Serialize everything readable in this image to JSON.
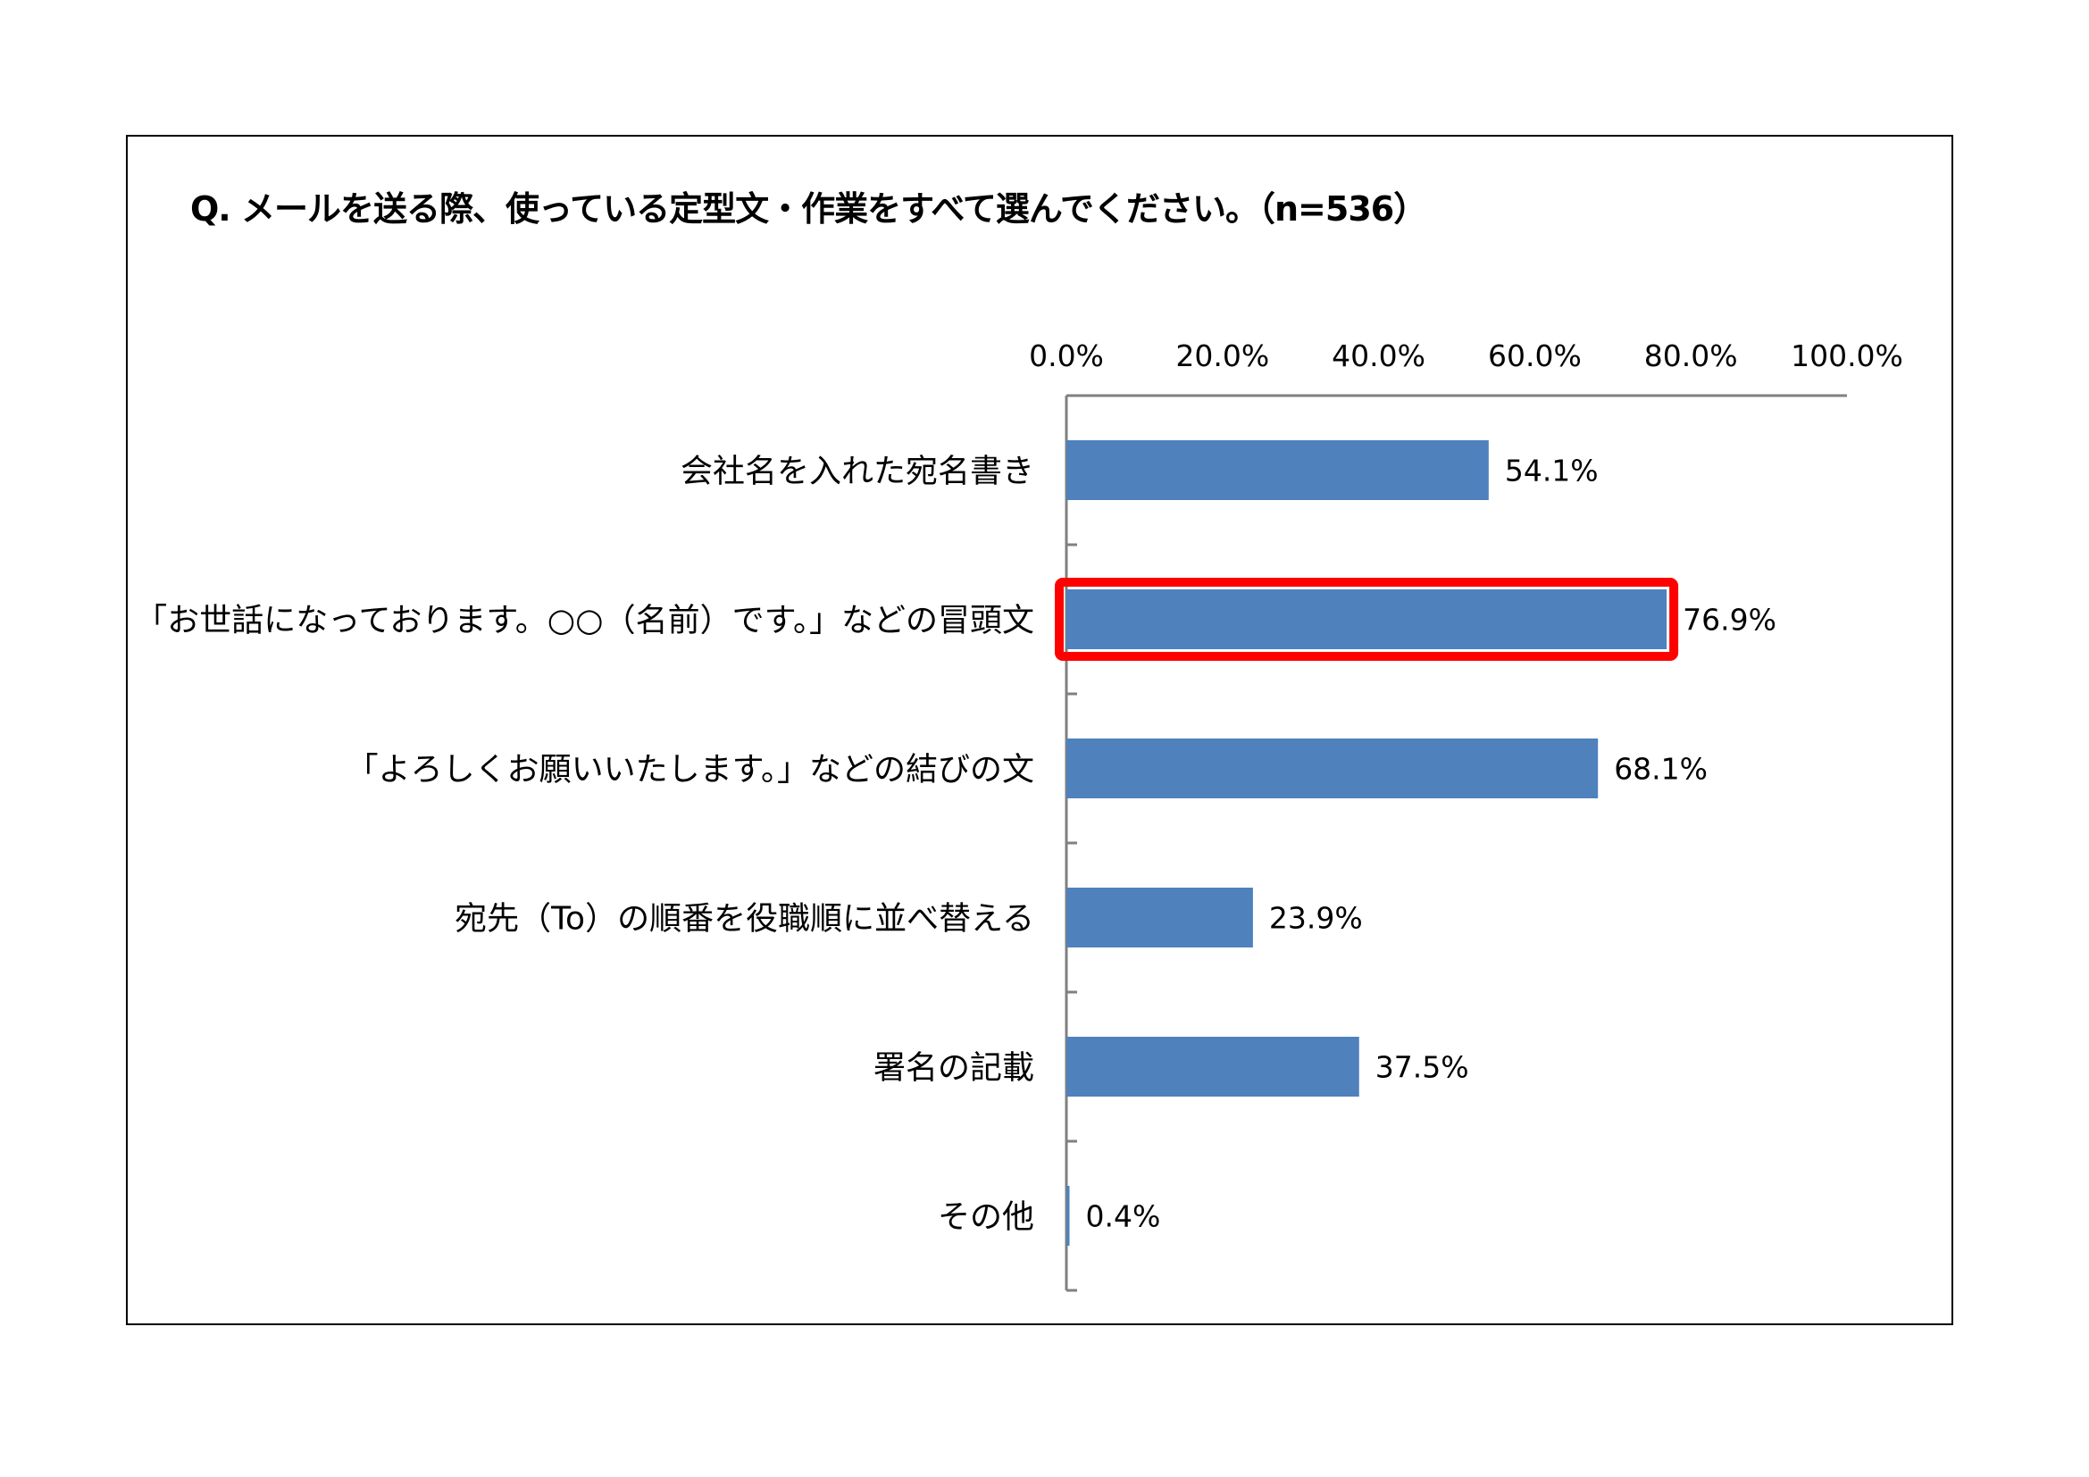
{
  "chart_data": {
    "type": "bar",
    "orientation": "horizontal",
    "title": "Q. メールを送る際、使っている定型文・作業をすべて選んでください。（n=536）",
    "categories": [
      "会社名を入れた宛名書き",
      "「お世話になっております。○○（名前）です。」などの冒頭文",
      "「よろしくお願いいたします。」などの結びの文",
      "宛先（To）の順番を役職順に並べ替える",
      "署名の記載",
      "その他"
    ],
    "values": [
      54.1,
      76.9,
      68.1,
      23.9,
      37.5,
      0.4
    ],
    "data_labels": [
      "54.1%",
      "76.9%",
      "68.1%",
      "23.9%",
      "37.5%",
      "0.4%"
    ],
    "xlim": [
      0,
      100
    ],
    "x_ticks": [
      0,
      20,
      40,
      60,
      80,
      100
    ],
    "x_tick_labels": [
      "0.0%",
      "20.0%",
      "40.0%",
      "60.0%",
      "80.0%",
      "100.0%"
    ],
    "axis_position": "top",
    "grid": false,
    "legend": "none",
    "highlighted_category_index": 1,
    "colors": {
      "bar": "#4F81BD",
      "highlight": "#FF0000",
      "axis": "#808080"
    }
  }
}
